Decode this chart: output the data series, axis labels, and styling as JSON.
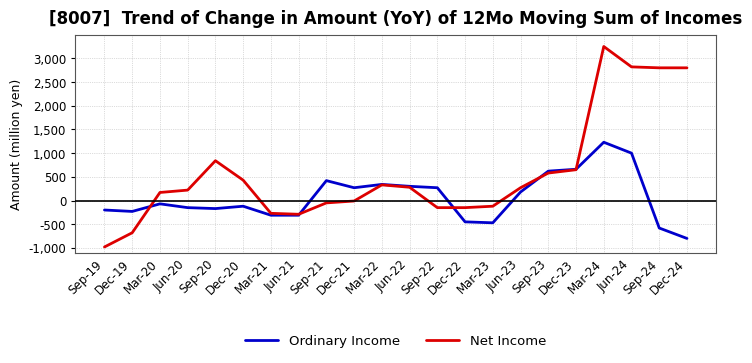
{
  "title": "[8007]  Trend of Change in Amount (YoY) of 12Mo Moving Sum of Incomes",
  "ylabel": "Amount (million yen)",
  "background_color": "#ffffff",
  "grid_color": "#bbbbbb",
  "x_labels": [
    "Sep-19",
    "Dec-19",
    "Mar-20",
    "Jun-20",
    "Sep-20",
    "Dec-20",
    "Mar-21",
    "Jun-21",
    "Sep-21",
    "Dec-21",
    "Mar-22",
    "Jun-22",
    "Sep-22",
    "Dec-22",
    "Mar-23",
    "Jun-23",
    "Sep-23",
    "Dec-23",
    "Mar-24",
    "Jun-24",
    "Sep-24",
    "Dec-24"
  ],
  "ordinary_income": [
    -200,
    -230,
    -70,
    -150,
    -170,
    -120,
    -310,
    -310,
    420,
    270,
    340,
    300,
    270,
    -450,
    -470,
    180,
    620,
    660,
    1230,
    1000,
    -580,
    -800
  ],
  "net_income": [
    -980,
    -680,
    170,
    220,
    840,
    430,
    -270,
    -290,
    -50,
    -10,
    330,
    280,
    -150,
    -150,
    -120,
    270,
    580,
    650,
    3250,
    2820,
    2800,
    2800
  ],
  "ordinary_color": "#0000cc",
  "net_color": "#dd0000",
  "ylim": [
    -1100,
    3500
  ],
  "yticks": [
    -1000,
    -500,
    0,
    500,
    1000,
    1500,
    2000,
    2500,
    3000
  ],
  "legend_labels": [
    "Ordinary Income",
    "Net Income"
  ],
  "title_fontsize": 12,
  "axis_label_fontsize": 9,
  "tick_fontsize": 8.5,
  "legend_fontsize": 9.5
}
